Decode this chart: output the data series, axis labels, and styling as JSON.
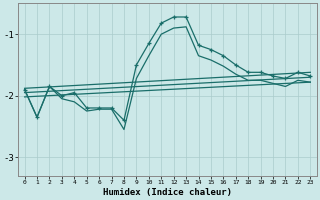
{
  "xlabel": "Humidex (Indice chaleur)",
  "xlim": [
    -0.5,
    23.5
  ],
  "ylim": [
    -3.3,
    -0.5
  ],
  "yticks": [
    -3,
    -2,
    -1
  ],
  "xticks": [
    0,
    1,
    2,
    3,
    4,
    5,
    6,
    7,
    8,
    9,
    10,
    11,
    12,
    13,
    14,
    15,
    16,
    17,
    18,
    19,
    20,
    21,
    22,
    23
  ],
  "bg_color": "#cce8e8",
  "grid_color": "#aacccc",
  "line_color": "#1a6e6a",
  "series_main_x": [
    0,
    1,
    2,
    3,
    4,
    5,
    6,
    7,
    8,
    9,
    10,
    11,
    12,
    13,
    14,
    15,
    16,
    17,
    18,
    19,
    20,
    21,
    22,
    23
  ],
  "series_main_y": [
    -1.9,
    -2.35,
    -1.85,
    -2.0,
    -1.95,
    -2.2,
    -2.2,
    -2.2,
    -2.4,
    -1.5,
    -1.15,
    -0.82,
    -0.72,
    -0.72,
    -1.18,
    -1.25,
    -1.35,
    -1.5,
    -1.62,
    -1.62,
    -1.68,
    -1.72,
    -1.62,
    -1.68
  ],
  "series_low_x": [
    0,
    1,
    2,
    3,
    4,
    5,
    6,
    7,
    8,
    9,
    10,
    11,
    12,
    13,
    14,
    15,
    16,
    17,
    18,
    19,
    20,
    21,
    22,
    23
  ],
  "series_low_y": [
    -1.9,
    -2.35,
    -1.85,
    -2.05,
    -2.1,
    -2.25,
    -2.22,
    -2.22,
    -2.55,
    -1.72,
    -1.35,
    -1.0,
    -0.9,
    -0.88,
    -1.35,
    -1.42,
    -1.52,
    -1.65,
    -1.75,
    -1.75,
    -1.8,
    -1.85,
    -1.75,
    -1.78
  ],
  "line1_x": [
    0,
    23
  ],
  "line1_y": [
    -1.88,
    -1.62
  ],
  "line2_x": [
    0,
    23
  ],
  "line2_y": [
    -1.95,
    -1.7
  ],
  "line3_x": [
    0,
    23
  ],
  "line3_y": [
    -2.02,
    -1.78
  ]
}
